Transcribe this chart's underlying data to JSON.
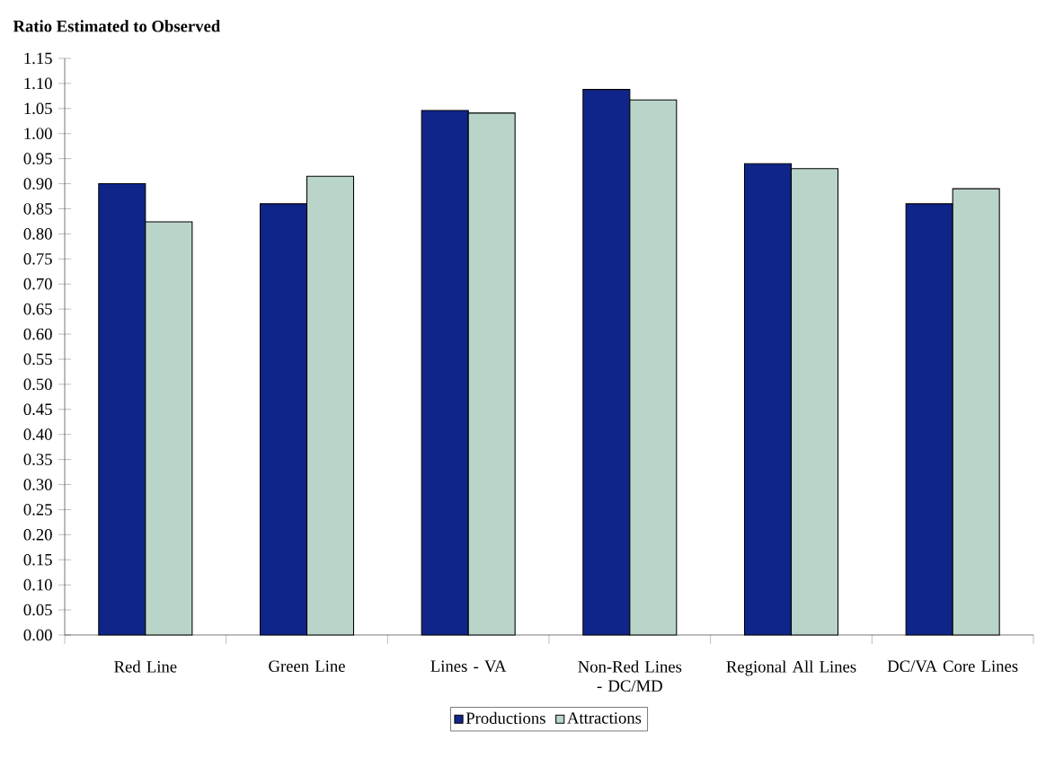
{
  "chart_data": {
    "type": "bar",
    "ylabel": "Ratio Estimated to Observed",
    "categories": [
      "Red Line",
      "Green Line",
      "Lines - VA",
      "Non-Red Lines - DC/MD",
      "Regional All Lines",
      "DC/VA Core Lines"
    ],
    "series": [
      {
        "name": "Productions",
        "color": "#10258a",
        "values": [
          0.9,
          0.86,
          1.046,
          1.088,
          0.94,
          0.86
        ]
      },
      {
        "name": "Attractions",
        "color": "#b9d5c9",
        "values": [
          0.824,
          0.915,
          1.041,
          1.067,
          0.93,
          0.89
        ]
      }
    ],
    "ylim": [
      0,
      1.15
    ],
    "yticks": [
      {
        "value": 0,
        "label": "0.00"
      },
      {
        "value": 0.05,
        "label": "0.05"
      },
      {
        "value": 0.1,
        "label": "0.10"
      },
      {
        "value": 0.15,
        "label": "0.15"
      },
      {
        "value": 0.2,
        "label": "0.20"
      },
      {
        "value": 0.25,
        "label": "0.25"
      },
      {
        "value": 0.3,
        "label": "0.30"
      },
      {
        "value": 0.35,
        "label": "0.35"
      },
      {
        "value": 0.4,
        "label": "0.40"
      },
      {
        "value": 0.45,
        "label": "0.45"
      },
      {
        "value": 0.5,
        "label": "0.50"
      },
      {
        "value": 0.55,
        "label": "0.55"
      },
      {
        "value": 0.6,
        "label": "0.60"
      },
      {
        "value": 0.65,
        "label": "0.65"
      },
      {
        "value": 0.7,
        "label": "0.70"
      },
      {
        "value": 0.75,
        "label": "0.75"
      },
      {
        "value": 0.8,
        "label": "0.80"
      },
      {
        "value": 0.85,
        "label": "0.85"
      },
      {
        "value": 0.9,
        "label": "0.90"
      },
      {
        "value": 0.95,
        "label": "0.95"
      },
      {
        "value": 1.0,
        "label": "1.00"
      },
      {
        "value": 1.05,
        "label": "1.05"
      },
      {
        "value": 1.1,
        "label": "1.10"
      },
      {
        "value": 1.15,
        "label": "1.15"
      }
    ],
    "grid": false,
    "legend": "bottom"
  }
}
